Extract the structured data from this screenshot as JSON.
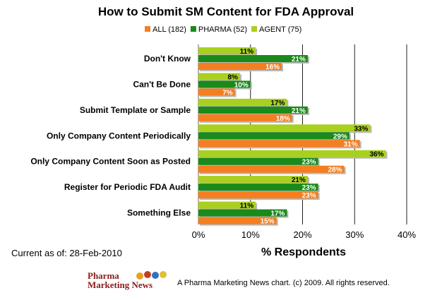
{
  "chart_data": {
    "type": "bar",
    "orientation": "horizontal",
    "title": "How to Submit SM Content for FDA Approval",
    "xlabel": "% Respondents",
    "ylabel": "",
    "xlim": [
      0,
      40
    ],
    "xticks": [
      "0%",
      "10%",
      "20%",
      "30%",
      "40%"
    ],
    "grid": true,
    "legend_position": "top",
    "categories": [
      "Don't Know",
      "Can't Be Done",
      "Submit Template or Sample",
      "Only Company Content Periodically",
      "Only Company Content Soon as Posted",
      "Register for Periodic FDA Audit",
      "Something Else"
    ],
    "series": [
      {
        "name": "AGENT (75)",
        "color": "#a9d01f",
        "values": [
          11,
          8,
          17,
          33,
          36,
          21,
          11
        ]
      },
      {
        "name": "PHARMA (52)",
        "color": "#1a8a1a",
        "values": [
          21,
          10,
          21,
          29,
          23,
          23,
          17
        ]
      },
      {
        "name": "ALL (182)",
        "color": "#f47e20",
        "values": [
          16,
          7,
          18,
          31,
          28,
          23,
          15
        ]
      }
    ],
    "legend_order": [
      "ALL (182)",
      "PHARMA (52)",
      "AGENT (75)"
    ]
  },
  "footer": {
    "current": "Current as of: 28-Feb-2010",
    "logo_line1": "Pharma",
    "logo_line2": "Marketing News",
    "copyright": "A Pharma Marketing News chart. (c) 2009. All rights reserved."
  }
}
